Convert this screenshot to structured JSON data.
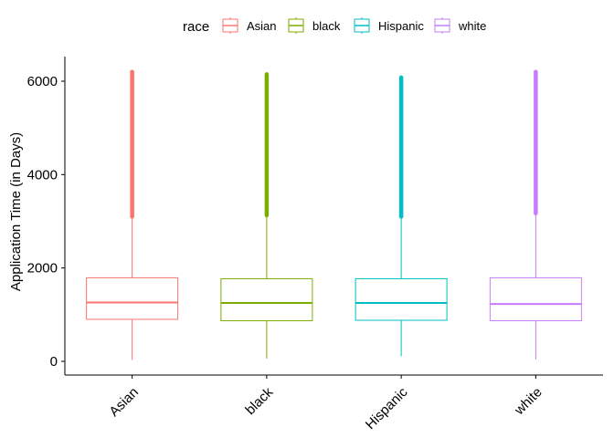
{
  "chart_data": {
    "type": "boxplot",
    "title": "",
    "xlabel": "",
    "ylabel": "Application Time (in Days)",
    "ylim": [
      -300,
      6500
    ],
    "yticks": [
      0,
      2000,
      4000,
      6000
    ],
    "ytick_labels": [
      "0",
      "2000",
      "4000",
      "6000"
    ],
    "categories": [
      "Asian",
      "black",
      "Hispanic",
      "white"
    ],
    "legend": {
      "title": "race",
      "position": "top",
      "entries": [
        "Asian",
        "black",
        "Hispanic",
        "white"
      ]
    },
    "series": [
      {
        "name": "Asian",
        "color": "#F8766D",
        "whisker_low": 30,
        "q1": 900,
        "median": 1260,
        "q3": 1790,
        "whisker_high": 3100,
        "outliers_from": 3100,
        "outliers_to": 6200
      },
      {
        "name": "black",
        "color": "#7CAE00",
        "whisker_low": 60,
        "q1": 870,
        "median": 1250,
        "q3": 1770,
        "whisker_high": 3130,
        "outliers_from": 3130,
        "outliers_to": 6150
      },
      {
        "name": "Hispanic",
        "color": "#00BFC4",
        "whisker_low": 110,
        "q1": 880,
        "median": 1250,
        "q3": 1770,
        "whisker_high": 3100,
        "outliers_from": 3100,
        "outliers_to": 6080
      },
      {
        "name": "white",
        "color": "#C77CFF",
        "whisker_low": 40,
        "q1": 870,
        "median": 1230,
        "q3": 1790,
        "whisker_high": 3170,
        "outliers_from": 3170,
        "outliers_to": 6200
      }
    ]
  }
}
